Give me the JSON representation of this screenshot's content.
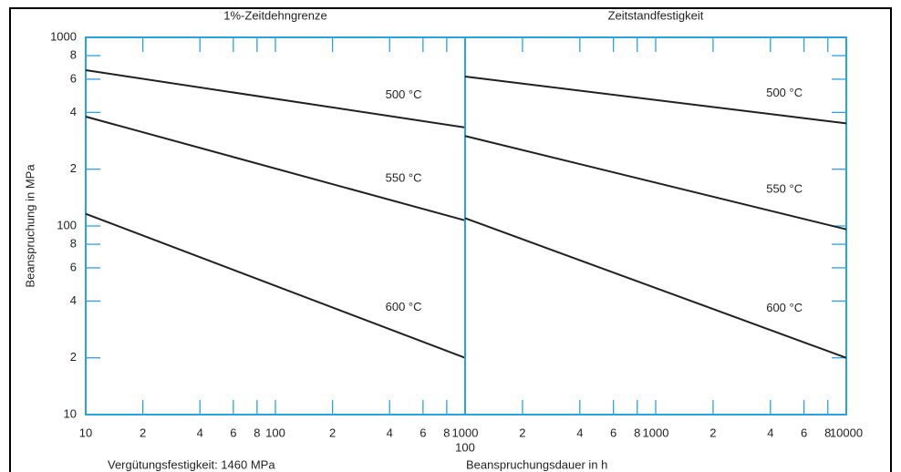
{
  "chart_data": [
    {
      "type": "line",
      "title": "1%-Zeitdehngrenze",
      "y_label": "Beanspruchung in MPa",
      "note": "Vergütungsfestigkeit: 1460 MPa",
      "log_x": true,
      "log_y": true,
      "xlim": [
        10,
        1000
      ],
      "ylim": [
        10,
        1000
      ],
      "xticks": [
        10,
        {
          "value": 20,
          "label": "2"
        },
        {
          "value": 40,
          "label": "4"
        },
        {
          "value": 60,
          "label": "6"
        },
        {
          "value": 80,
          "label": "8"
        },
        100,
        {
          "value": 200,
          "label": "2"
        },
        {
          "value": 400,
          "label": "4"
        },
        {
          "value": 600,
          "label": "6"
        },
        {
          "value": 800,
          "label": "8"
        },
        1000
      ],
      "yticks": [
        10,
        {
          "value": 20,
          "label": "2"
        },
        {
          "value": 40,
          "label": "4"
        },
        {
          "value": 60,
          "label": "6"
        },
        {
          "value": 80,
          "label": "8"
        },
        100,
        {
          "value": 200,
          "label": "2"
        },
        {
          "value": 400,
          "label": "4"
        },
        {
          "value": 600,
          "label": "6"
        },
        {
          "value": 800,
          "label": "8"
        },
        1000
      ],
      "x": [
        10,
        1000
      ],
      "series": [
        {
          "name": "500 °C",
          "color": "#231f20",
          "values": [
            670,
            333
          ]
        },
        {
          "name": "550 °C",
          "color": "#231f20",
          "values": [
            380,
            107
          ]
        },
        {
          "name": "600 °C",
          "color": "#231f20",
          "values": [
            116,
            20
          ]
        }
      ]
    },
    {
      "type": "line",
      "title": "Zeitstandfestigkeit",
      "x_label": "Beanspruchungsdauer in h",
      "log_x": true,
      "log_y": true,
      "xlim": [
        100,
        10000
      ],
      "ylim": [
        10,
        1000
      ],
      "xticks": [
        100,
        {
          "value": 200,
          "label": "2"
        },
        {
          "value": 400,
          "label": "4"
        },
        {
          "value": 600,
          "label": "6"
        },
        {
          "value": 800,
          "label": "8"
        },
        1000,
        {
          "value": 2000,
          "label": "2"
        },
        {
          "value": 4000,
          "label": "4"
        },
        {
          "value": 6000,
          "label": "6"
        },
        {
          "value": 8000,
          "label": "8"
        },
        10000
      ],
      "x": [
        100,
        10000
      ],
      "series": [
        {
          "name": "500 °C",
          "color": "#231f20",
          "values": [
            620,
            350
          ]
        },
        {
          "name": "550 °C",
          "color": "#231f20",
          "values": [
            300,
            96
          ]
        },
        {
          "name": "600 °C",
          "color": "#231f20",
          "values": [
            110,
            20
          ]
        }
      ]
    }
  ]
}
